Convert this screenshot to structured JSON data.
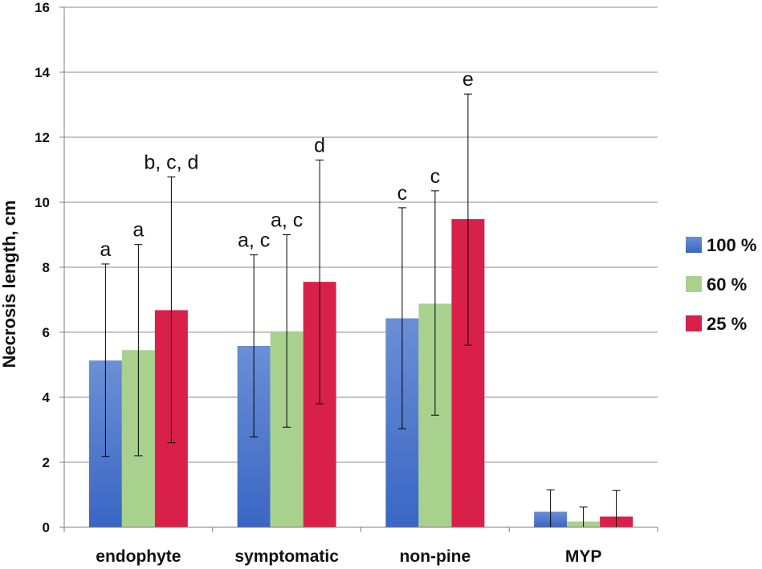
{
  "chart_data": {
    "type": "bar",
    "title": "",
    "xlabel": "",
    "ylabel": "Necrosis length, cm",
    "ylim": [
      0,
      16
    ],
    "yticks": [
      0,
      2,
      4,
      6,
      8,
      10,
      12,
      14,
      16
    ],
    "ytick_labels": [
      "0",
      "2",
      "4",
      "6",
      "8",
      "10",
      "12",
      "14",
      "16"
    ],
    "grid": true,
    "legend_position": "right",
    "categories": [
      "endophyte",
      "symptomatic",
      "non-pine",
      "MYP"
    ],
    "series": [
      {
        "name": "100 %",
        "color": "#3a66c4",
        "values": [
          5.13,
          5.58,
          6.43,
          0.48
        ],
        "error_low": [
          2.18,
          2.78,
          3.03,
          0.0
        ],
        "error_high": [
          8.1,
          8.38,
          9.83,
          1.15
        ],
        "labels": [
          "a",
          "a, c",
          "c",
          ""
        ]
      },
      {
        "name": "60 %",
        "color": "#a9d18e",
        "values": [
          5.45,
          6.03,
          6.88,
          0.18
        ],
        "error_low": [
          2.2,
          3.08,
          3.45,
          0.0
        ],
        "error_high": [
          8.7,
          9.0,
          10.35,
          0.62
        ],
        "labels": [
          "a",
          "a, c",
          "c",
          ""
        ]
      },
      {
        "name": "25 %",
        "color": "#d9204b",
        "values": [
          6.68,
          7.55,
          9.48,
          0.33
        ],
        "error_low": [
          2.6,
          3.8,
          5.6,
          0.0
        ],
        "error_high": [
          10.78,
          11.3,
          13.33,
          1.13
        ],
        "labels": [
          "b, c, d",
          "d",
          "e",
          ""
        ]
      }
    ]
  }
}
